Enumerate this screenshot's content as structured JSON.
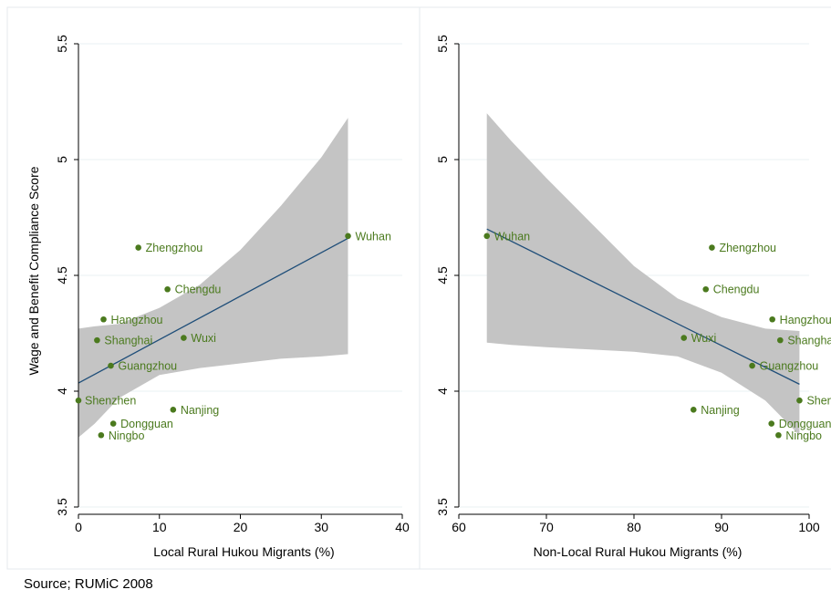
{
  "chart_data": [
    {
      "type": "scatter",
      "xlabel": "Local Rural Hukou Migrants (%)",
      "ylabel": "Wage and Benefit Compliance Score",
      "xlim": [
        0,
        40
      ],
      "ylim": [
        3.5,
        5.5
      ],
      "xticks": [
        "0",
        "10",
        "20",
        "30",
        "40"
      ],
      "yticks": [
        "3.5",
        "4",
        "4.5",
        "5",
        "5.5"
      ],
      "grid": true,
      "points": [
        {
          "label": "Wuhan",
          "x": 33.3,
          "y": 4.67
        },
        {
          "label": "Zhengzhou",
          "x": 7.4,
          "y": 4.62
        },
        {
          "label": "Chengdu",
          "x": 11.0,
          "y": 4.44
        },
        {
          "label": "Hangzhou",
          "x": 3.1,
          "y": 4.31
        },
        {
          "label": "Shanghai",
          "x": 2.3,
          "y": 4.22
        },
        {
          "label": "Wuxi",
          "x": 13.0,
          "y": 4.23
        },
        {
          "label": "Guangzhou",
          "x": 4.0,
          "y": 4.11
        },
        {
          "label": "Shenzhen",
          "x": 0.0,
          "y": 3.96
        },
        {
          "label": "Nanjing",
          "x": 11.7,
          "y": 3.92
        },
        {
          "label": "Dongguan",
          "x": 4.3,
          "y": 3.86
        },
        {
          "label": "Ningbo",
          "x": 2.8,
          "y": 3.81
        }
      ],
      "fit_line": {
        "x": [
          0.0,
          33.3
        ],
        "y": [
          4.035,
          4.66
        ]
      },
      "confidence_band": {
        "x": [
          0,
          2,
          5,
          10,
          15,
          20,
          25,
          30,
          33.3
        ],
        "upper": [
          4.27,
          4.28,
          4.29,
          4.36,
          4.46,
          4.61,
          4.8,
          5.01,
          5.18
        ],
        "lower": [
          3.8,
          3.86,
          3.97,
          4.07,
          4.1,
          4.12,
          4.14,
          4.15,
          4.16
        ]
      },
      "colors": {
        "points": "#4b7a1e",
        "labels": "#4b7a1e",
        "line": "#1f4e79",
        "band": "#c4c4c4"
      }
    },
    {
      "type": "scatter",
      "xlabel": "Non-Local Rural Hukou Migrants (%)",
      "ylabel": "",
      "xlim": [
        60,
        100
      ],
      "ylim": [
        3.5,
        5.5
      ],
      "xticks": [
        "60",
        "70",
        "80",
        "90",
        "100"
      ],
      "yticks": [
        "3.5",
        "4",
        "4.5",
        "5",
        "5.5"
      ],
      "grid": true,
      "points": [
        {
          "label": "Wuhan",
          "x": 63.2,
          "y": 4.67
        },
        {
          "label": "Zhengzhou",
          "x": 88.9,
          "y": 4.62
        },
        {
          "label": "Chengdu",
          "x": 88.2,
          "y": 4.44
        },
        {
          "label": "Hangzhou",
          "x": 95.8,
          "y": 4.31
        },
        {
          "label": "Shanghai",
          "x": 96.7,
          "y": 4.22
        },
        {
          "label": "Wuxi",
          "x": 85.7,
          "y": 4.23
        },
        {
          "label": "Guangzhou",
          "x": 93.5,
          "y": 4.11
        },
        {
          "label": "Shenzhen",
          "x": 98.9,
          "y": 3.96
        },
        {
          "label": "Nanjing",
          "x": 86.8,
          "y": 3.92
        },
        {
          "label": "Dongguan",
          "x": 95.7,
          "y": 3.86
        },
        {
          "label": "Ningbo",
          "x": 96.5,
          "y": 3.81
        }
      ],
      "fit_line": {
        "x": [
          63.2,
          98.9
        ],
        "y": [
          4.7,
          4.03
        ]
      },
      "confidence_band": {
        "x": [
          63.2,
          66,
          70,
          75,
          80,
          85,
          90,
          95,
          98.9
        ],
        "upper": [
          5.2,
          5.08,
          4.92,
          4.73,
          4.54,
          4.4,
          4.32,
          4.27,
          4.26
        ],
        "lower": [
          4.21,
          4.2,
          4.19,
          4.18,
          4.17,
          4.15,
          4.08,
          3.96,
          3.81
        ]
      },
      "colors": {
        "points": "#4b7a1e",
        "labels": "#4b7a1e",
        "line": "#1f4e79",
        "band": "#c4c4c4"
      }
    }
  ],
  "source_text": "Source; RUMiC 2008"
}
